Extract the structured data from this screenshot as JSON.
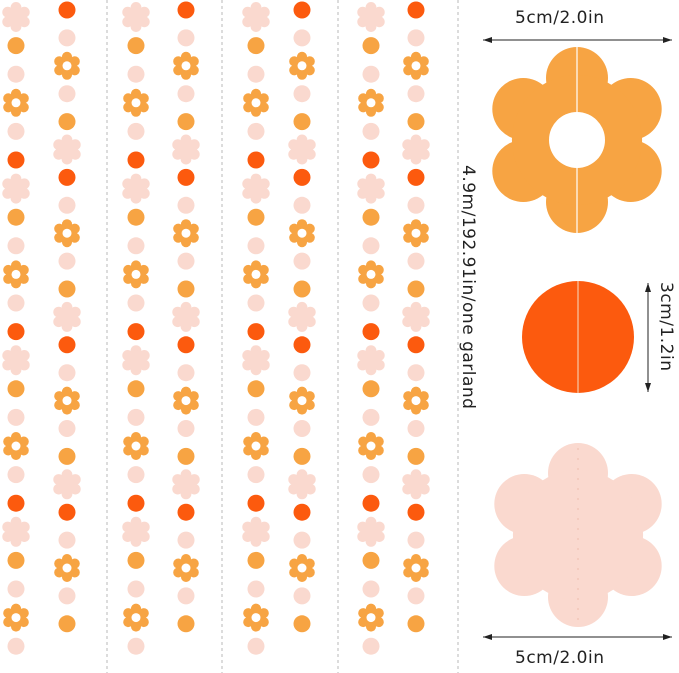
{
  "colors": {
    "orange": "#f7a443",
    "red_orange": "#fc5a0e",
    "pink": "#fad9cf",
    "divider": "#b8b8b8",
    "text": "#222222"
  },
  "garland": {
    "strands_shown": 8,
    "left_pattern": [
      "pink-flower",
      "orange-dot",
      "pink-dot",
      "orange-flower",
      "pink-dot",
      "red-dot"
    ],
    "right_pattern": [
      "red-dot",
      "pink-dot",
      "orange-flower",
      "pink-dot",
      "orange-dot",
      "pink-flower"
    ],
    "length_label": "4.9m/192.91in/one garland"
  },
  "dimensions": {
    "flower_width_top": "5cm/2.0in",
    "circle_height": "3cm/1.2in",
    "flower_width_bottom": "5cm/2.0in"
  }
}
